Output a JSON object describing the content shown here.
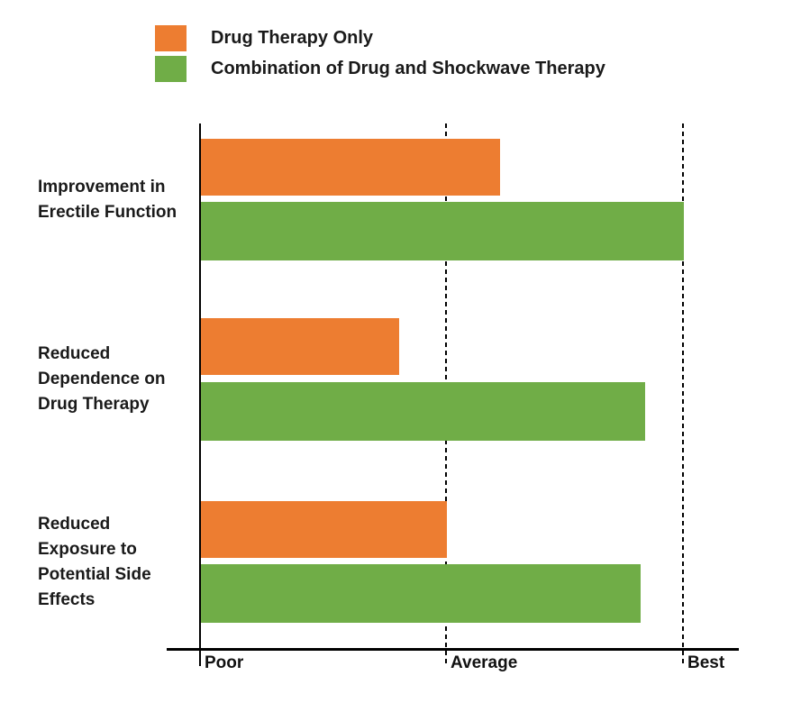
{
  "legend": {
    "items": [
      {
        "label": "Drug Therapy Only",
        "color": "#ED7D31"
      },
      {
        "label": "Combination of Drug and Shockwave Therapy",
        "color": "#70AD47"
      }
    ]
  },
  "chart_data": {
    "type": "bar",
    "orientation": "horizontal",
    "title": "",
    "categories": [
      "Improvement in Erectile Function",
      "Reduced Dependence on Drug Therapy",
      "Reduced Exposure to Potential Side Effects"
    ],
    "categories_display": [
      "Improvement in\nErectile Function",
      "Reduced\nDependence on\nDrug Therapy",
      "Reduced\nExposure to\nPotential Side\nEffects"
    ],
    "series": [
      {
        "name": "Drug Therapy Only",
        "color": "#ED7D31",
        "values": [
          62,
          41,
          51
        ]
      },
      {
        "name": "Combination of Drug and Shockwave Therapy",
        "color": "#70AD47",
        "values": [
          100,
          92,
          91
        ]
      }
    ],
    "scale": {
      "min": 0,
      "max": 100,
      "ticks": [
        {
          "label": "Poor",
          "value": 0
        },
        {
          "label": "Average",
          "value": 50
        },
        {
          "label": "Best",
          "value": 100
        }
      ]
    },
    "gridlines": "vertical dashed at Average and Best",
    "legend_position": "top-left",
    "axis_note": "qualitative x-axis from Poor to Best; values estimated as percent of Best"
  }
}
